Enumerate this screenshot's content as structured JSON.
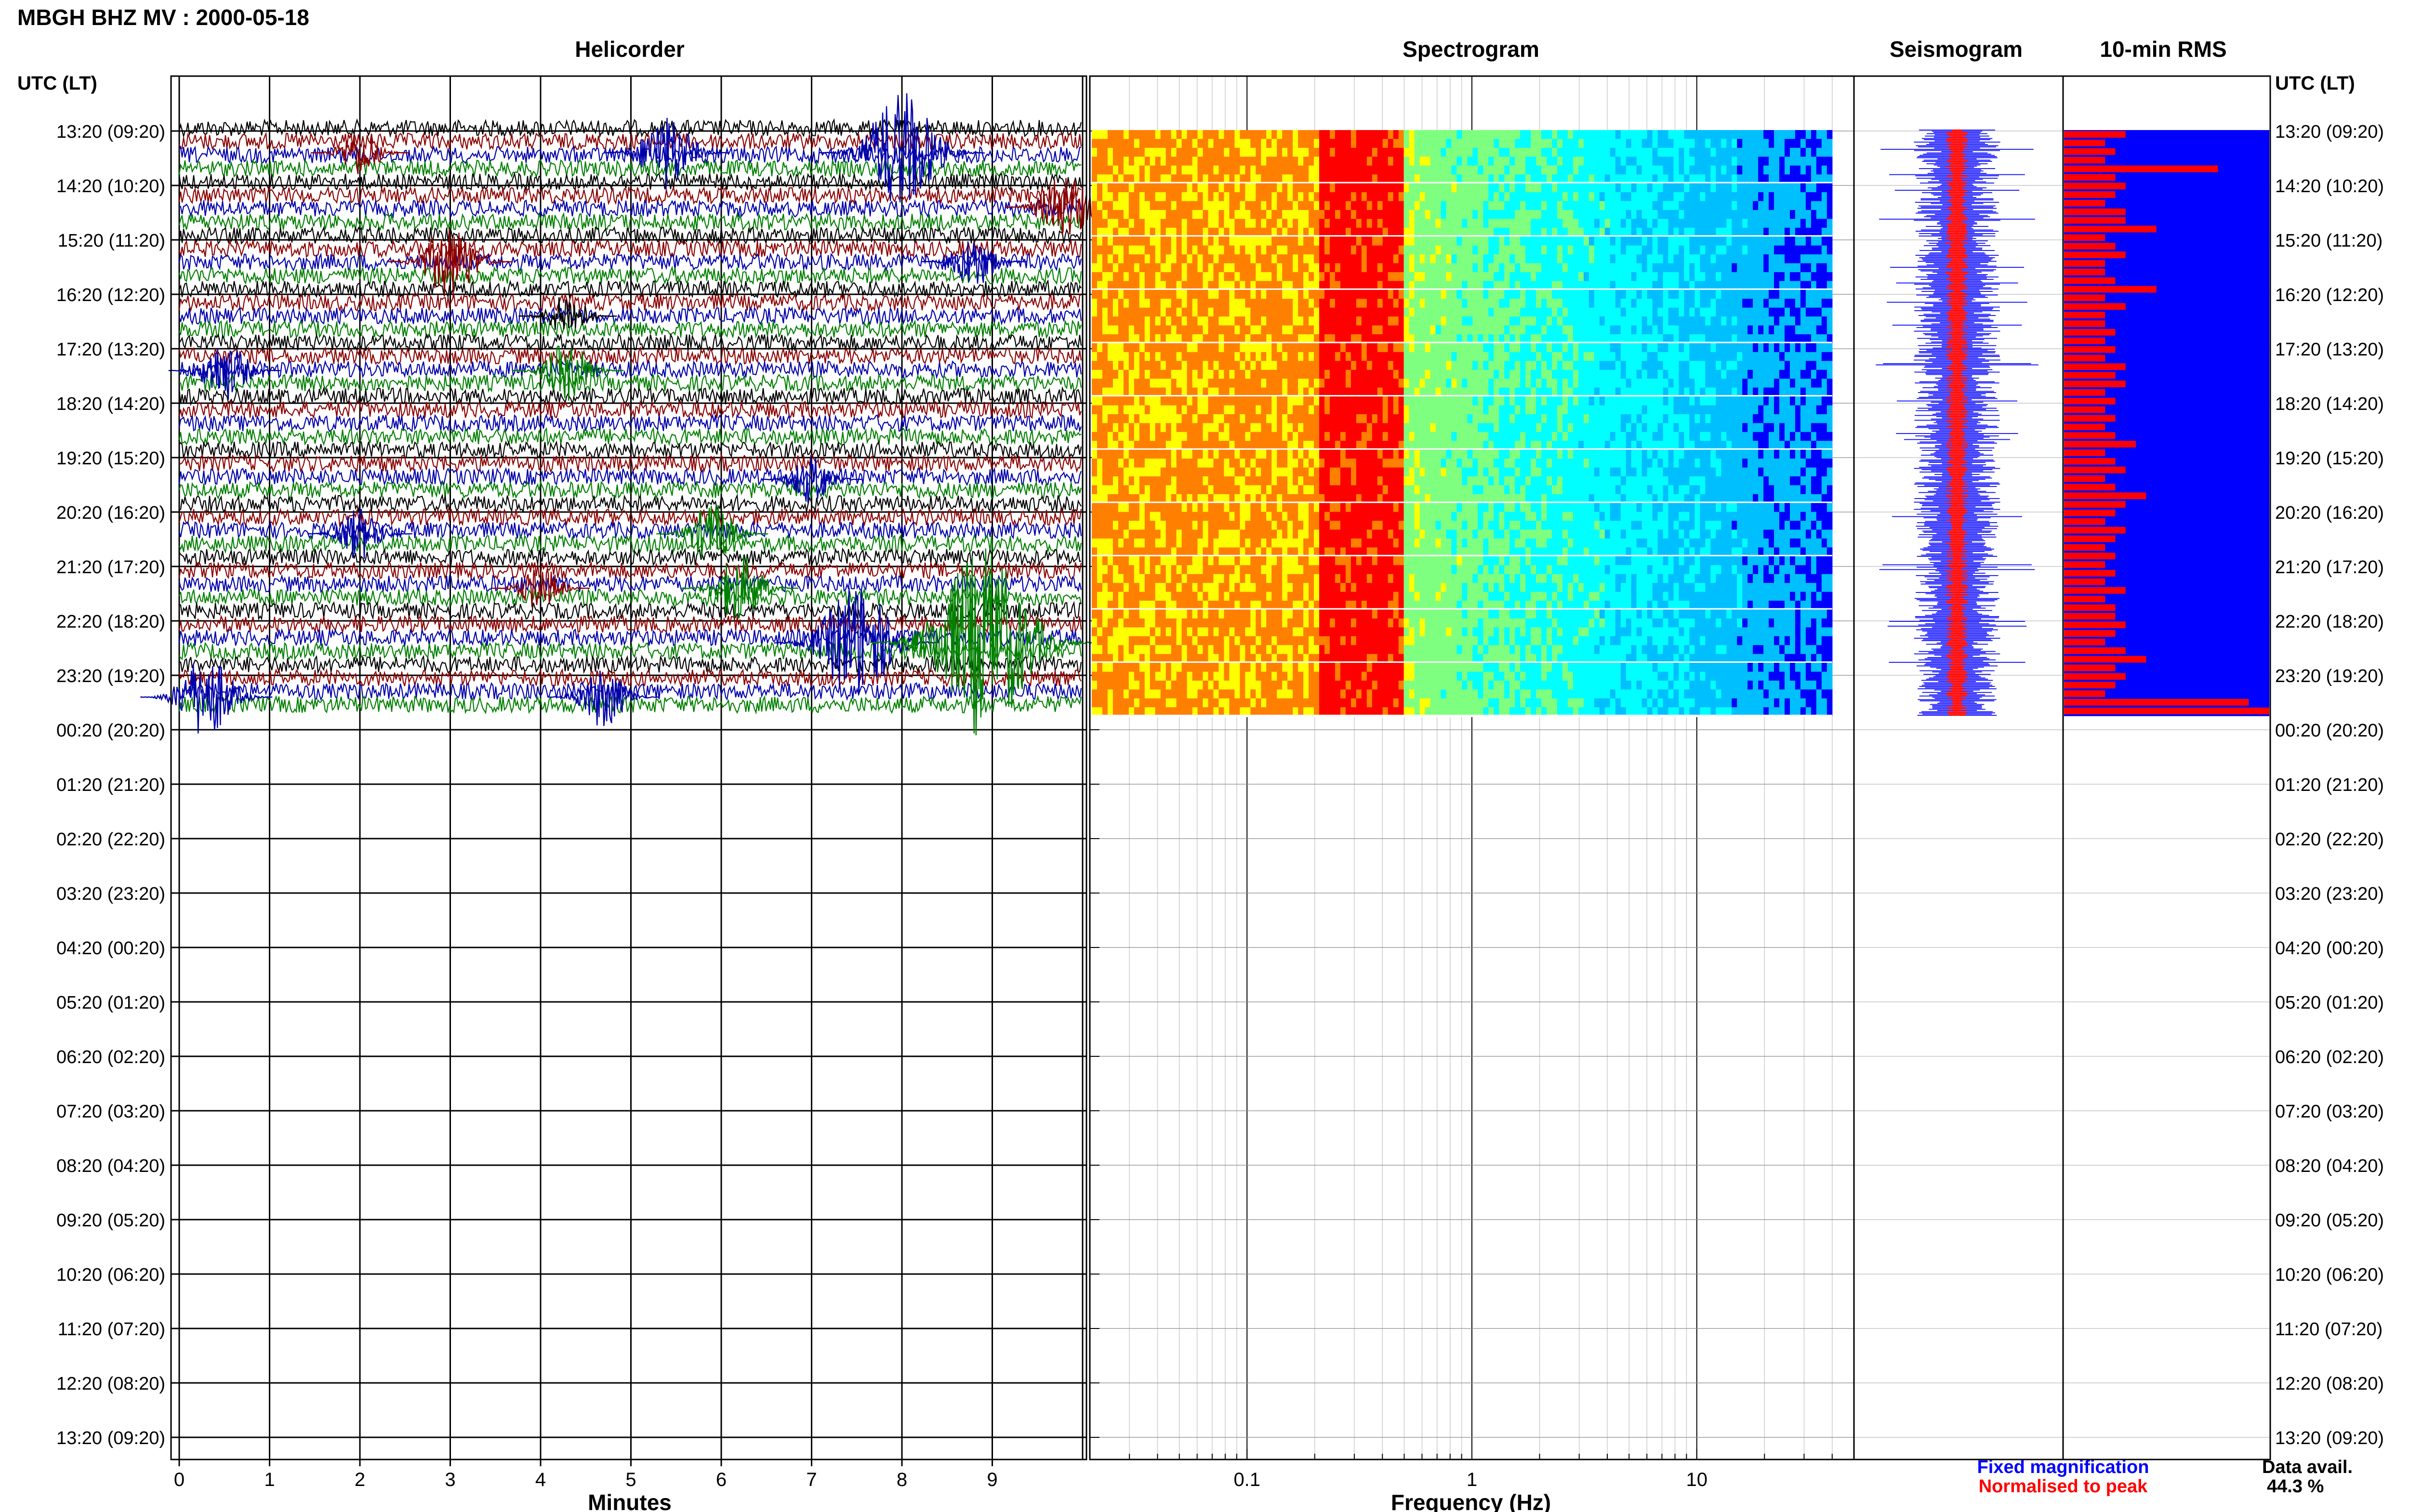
{
  "header": {
    "title": "MBGH BHZ MV : 2000-05-18",
    "time_axis_label_left": "UTC (LT)",
    "time_axis_label_right": "UTC (LT)"
  },
  "panels": {
    "helicorder": "Helicorder",
    "spectrogram": "Spectrogram",
    "seismogram": "Seismogram",
    "rms": "10-min RMS"
  },
  "time_labels": [
    "13:20 (09:20)",
    "14:20 (10:20)",
    "15:20 (11:20)",
    "16:20 (12:20)",
    "17:20 (13:20)",
    "18:20 (14:20)",
    "19:20 (15:20)",
    "20:20 (16:20)",
    "21:20 (17:20)",
    "22:20 (18:20)",
    "23:20 (19:20)",
    "00:20 (20:20)",
    "01:20 (21:20)",
    "02:20 (22:20)",
    "03:20 (23:20)",
    "04:20 (00:20)",
    "05:20 (01:20)",
    "06:20 (02:20)",
    "07:20 (03:20)",
    "08:20 (04:20)",
    "09:20 (05:20)",
    "10:20 (06:20)",
    "11:20 (07:20)",
    "12:20 (08:20)",
    "13:20 (09:20)"
  ],
  "legend": {
    "fixed": "Fixed magnification",
    "normalised": "Normalised to peak",
    "fixed_color": "#0000ff",
    "normalised_color": "#ff0000",
    "avail_label": "Data avail.",
    "avail_value": "44.3 %"
  },
  "chart_data": [
    {
      "type": "line",
      "panel": "Helicorder",
      "xlabel": "Minutes",
      "x_ticks": [
        "0",
        "1",
        "2",
        "3",
        "4",
        "5",
        "6",
        "7",
        "8",
        "9"
      ],
      "xlim": [
        0,
        10
      ],
      "trace_colors": [
        "#000000",
        "#8b0000",
        "#0000aa",
        "#008000"
      ],
      "data_rows_hours": 11,
      "events": [
        {
          "hour": 0,
          "minute": 8.0,
          "color": "#0000aa",
          "amp": 3.2
        },
        {
          "hour": 0,
          "minute": 5.4,
          "color": "#0000aa",
          "amp": 2.0
        },
        {
          "hour": 0,
          "minute": 2.0,
          "color": "#8b0000",
          "amp": 1.2
        },
        {
          "hour": 1,
          "minute": 9.8,
          "color": "#8b0000",
          "amp": 1.8
        },
        {
          "hour": 2,
          "minute": 3.0,
          "color": "#8b0000",
          "amp": 2.0
        },
        {
          "hour": 2,
          "minute": 8.8,
          "color": "#0000aa",
          "amp": 1.4
        },
        {
          "hour": 3,
          "minute": 4.3,
          "color": "#000000",
          "amp": 1.2
        },
        {
          "hour": 4,
          "minute": 4.3,
          "color": "#008000",
          "amp": 1.6
        },
        {
          "hour": 4,
          "minute": 0.5,
          "color": "#0000aa",
          "amp": 1.6
        },
        {
          "hour": 6,
          "minute": 7.0,
          "color": "#0000aa",
          "amp": 1.3
        },
        {
          "hour": 7,
          "minute": 5.9,
          "color": "#008000",
          "amp": 1.6
        },
        {
          "hour": 7,
          "minute": 2.0,
          "color": "#0000aa",
          "amp": 1.4
        },
        {
          "hour": 8,
          "minute": 6.2,
          "color": "#008000",
          "amp": 1.8
        },
        {
          "hour": 8,
          "minute": 4.0,
          "color": "#8b0000",
          "amp": 1.2
        },
        {
          "hour": 9,
          "minute": 7.5,
          "color": "#0000aa",
          "amp": 3.2
        },
        {
          "hour": 9,
          "minute": 8.9,
          "color": "#008000",
          "amp": 5.0
        },
        {
          "hour": 10,
          "minute": 0.3,
          "color": "#0000aa",
          "amp": 2.2
        },
        {
          "hour": 10,
          "minute": 4.7,
          "color": "#0000aa",
          "amp": 1.6
        }
      ]
    },
    {
      "type": "heatmap",
      "panel": "Spectrogram",
      "xlabel": "Frequency (Hz)",
      "x_scale": "log",
      "xlim": [
        0.02,
        50
      ],
      "x_ticks": [
        "0.1",
        "1",
        "10"
      ],
      "data_end_hz": 40,
      "colormap": [
        "#00008b",
        "#0000ff",
        "#00bfff",
        "#00ffff",
        "#7fff7f",
        "#ffff00",
        "#ff7f00",
        "#ff0000"
      ],
      "peak_band_hz": [
        0.2,
        0.5
      ],
      "data_rows_hours": 11
    },
    {
      "type": "line",
      "panel": "Seismogram",
      "series": [
        {
          "name": "Fixed magnification",
          "color": "#0000ff"
        },
        {
          "name": "Normalised to peak",
          "color": "#ff0000"
        }
      ],
      "data_rows_hours": 11
    },
    {
      "type": "bar",
      "panel": "10-min RMS",
      "series": [
        {
          "name": "Fixed magnification",
          "color": "#0000ff",
          "values": [
            1.0,
            1.0,
            1.0,
            1.0,
            1.0,
            1.0,
            1.0,
            1.0,
            1.0,
            1.0,
            1.0
          ]
        },
        {
          "name": "Normalised to peak",
          "color": "#ff0000",
          "values": [
            0.3,
            0.2,
            0.25,
            0.2,
            0.75,
            0.25,
            0.3,
            0.25,
            0.2,
            0.3,
            0.3,
            0.45,
            0.2,
            0.25,
            0.3,
            0.2,
            0.2,
            0.25,
            0.45,
            0.2,
            0.3,
            0.2,
            0.2,
            0.25,
            0.2,
            0.25,
            0.2,
            0.3,
            0.25,
            0.3,
            0.2,
            0.25,
            0.2,
            0.25,
            0.2,
            0.25,
            0.35,
            0.2,
            0.25,
            0.3,
            0.2,
            0.25,
            0.4,
            0.3,
            0.25,
            0.2,
            0.3,
            0.25,
            0.2,
            0.25,
            0.2,
            0.25,
            0.2,
            0.3,
            0.2,
            0.25,
            0.25,
            0.3,
            0.25,
            0.2,
            0.3,
            0.4,
            0.25,
            0.3,
            0.25,
            0.2,
            0.9,
            1.0
          ]
        }
      ],
      "data_rows_hours": 11
    }
  ]
}
